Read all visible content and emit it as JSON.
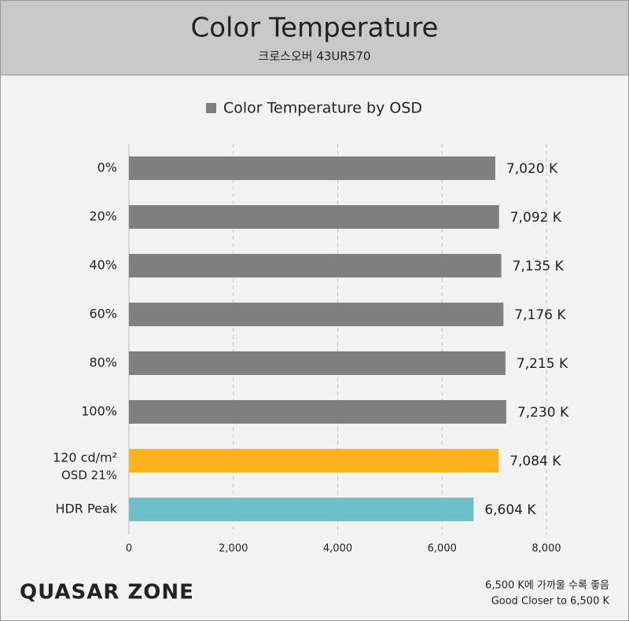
{
  "chart_data": {
    "type": "bar",
    "orientation": "horizontal",
    "title": "Color Temperature",
    "subtitle": "크로스오버 43UR570",
    "categories": [
      "0%",
      "20%",
      "40%",
      "60%",
      "80%",
      "100%",
      "120 cd/m²",
      "HDR Peak"
    ],
    "category_notes": [
      null,
      null,
      null,
      null,
      null,
      null,
      "OSD 21%",
      null
    ],
    "series": [
      {
        "name": "Color Temperature by OSD",
        "color": "#7f7f7f",
        "values": [
          7020,
          7092,
          7135,
          7176,
          7215,
          7230,
          7084,
          6604
        ],
        "value_labels": [
          "7,020 K",
          "7,092 K",
          "7,135 K",
          "7,176 K",
          "7,215 K",
          "7,230 K",
          "7,084 K",
          "6,604 K"
        ],
        "colors": [
          "#7f7f7f",
          "#7f7f7f",
          "#7f7f7f",
          "#7f7f7f",
          "#7f7f7f",
          "#7f7f7f",
          "#fdb11c",
          "#6fbfc6"
        ]
      }
    ],
    "xlim": [
      0,
      8000
    ],
    "xticks": [
      0,
      {
        "value": 2000,
        "label": "2,000"
      },
      {
        "value": 4000,
        "label": "4,000"
      },
      {
        "value": 6000,
        "label": "6,000"
      },
      {
        "value": 8000,
        "label": "8,000"
      }
    ],
    "grid": true,
    "legend": "top"
  },
  "footer": {
    "logo": "QUASAR ZONE",
    "notes": [
      "6,500 K에 가까울 수록 좋음",
      "Good Closer to 6,500 K"
    ]
  }
}
